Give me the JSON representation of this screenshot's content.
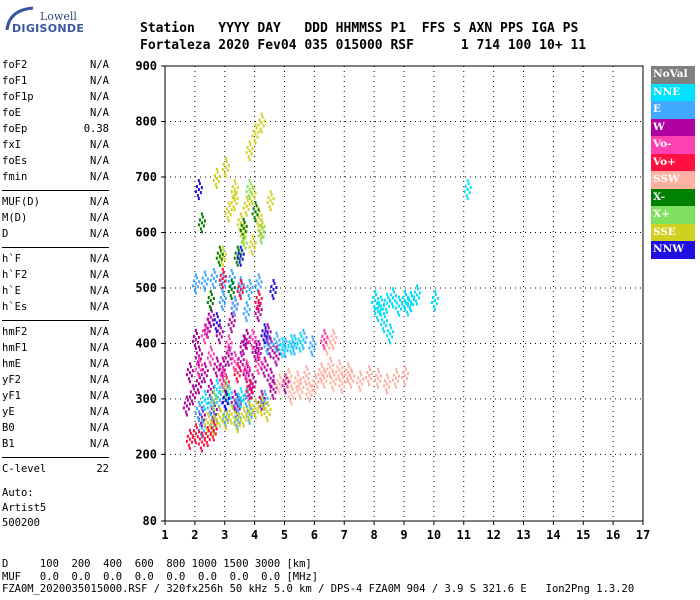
{
  "logo": {
    "top": "Lowell",
    "bottom": "DIGISONDE"
  },
  "header": {
    "line1": "Station   YYYY DAY   DDD HHMMSS P1  FFS S AXN PPS IGA PS",
    "line2": "Fortaleza 2020 Fev04 035 015000 RSF      1 714 100 10+ 11"
  },
  "params_group1": [
    {
      "name": "foF2",
      "value": "N/A"
    },
    {
      "name": "foF1",
      "value": "N/A"
    },
    {
      "name": "foF1p",
      "value": "N/A"
    },
    {
      "name": "foE",
      "value": "N/A"
    },
    {
      "name": "foEp",
      "value": "0.38"
    },
    {
      "name": "fxI",
      "value": "N/A"
    },
    {
      "name": "foEs",
      "value": "N/A"
    },
    {
      "name": "fmin",
      "value": "N/A"
    }
  ],
  "params_group2": [
    {
      "name": "MUF(D)",
      "value": "N/A"
    },
    {
      "name": "M(D)",
      "value": "N/A"
    },
    {
      "name": "D",
      "value": "N/A"
    }
  ],
  "params_group3": [
    {
      "name": "h`F",
      "value": "N/A"
    },
    {
      "name": "h`F2",
      "value": "N/A"
    },
    {
      "name": "h`E",
      "value": "N/A"
    },
    {
      "name": "h`Es",
      "value": "N/A"
    }
  ],
  "params_group4": [
    {
      "name": "hmF2",
      "value": "N/A"
    },
    {
      "name": "hmF1",
      "value": "N/A"
    },
    {
      "name": "hmE",
      "value": "N/A"
    },
    {
      "name": "yF2",
      "value": "N/A"
    },
    {
      "name": "yF1",
      "value": "N/A"
    },
    {
      "name": "yE",
      "value": "N/A"
    },
    {
      "name": "B0",
      "value": "N/A"
    },
    {
      "name": "B1",
      "value": "N/A"
    }
  ],
  "params_group5": [
    {
      "name": "C-level",
      "value": "22"
    }
  ],
  "auto": {
    "line1": "Auto:",
    "line2": "Artist5",
    "line3": "500200"
  },
  "legend": [
    {
      "label": "NoVal",
      "color": "#808080"
    },
    {
      "label": "NNE",
      "color": "#00e0ff"
    },
    {
      "label": "E",
      "color": "#40a8ff"
    },
    {
      "label": "W",
      "color": "#b000a0"
    },
    {
      "label": "Vo-",
      "color": "#ff40b0"
    },
    {
      "label": "Vo+",
      "color": "#ff1040"
    },
    {
      "label": "SSW",
      "color": "#ffb0a0"
    },
    {
      "label": "X-",
      "color": "#008000"
    },
    {
      "label": "X+",
      "color": "#80e060"
    },
    {
      "label": "SSE",
      "color": "#d0d020"
    },
    {
      "label": "NNW",
      "color": "#2010e0"
    }
  ],
  "bottom": {
    "line1": "D     100  200  400  600  800 1000 1500 3000 [km]",
    "line2": "MUF   0.0  0.0  0.0  0.0  0.0  0.0  0.0  0.0 [MHz]",
    "line3": "FZA0M_2020035015000.RSF / 320fx256h 50 kHz 5.0 km / DPS-4 FZA0M 904 / 3.9 S 321.6 E   Ion2Png 1.3.20"
  },
  "chart_data": {
    "type": "scatter",
    "x_ticks": [
      "1",
      "2",
      "3",
      "4",
      "5",
      "6",
      "7",
      "8",
      "9",
      "10",
      "11",
      "12",
      "13",
      "14",
      "15",
      "16",
      "17"
    ],
    "y_ticks": [
      "80",
      "200",
      "300",
      "400",
      "500",
      "600",
      "700",
      "800",
      "900"
    ],
    "xlim": [
      1,
      17
    ],
    "ylim": [
      80,
      900
    ],
    "series": [
      {
        "color": "#b000a0",
        "x": [
          1.7,
          1.9,
          2.1,
          2.3,
          2.5,
          2.7,
          2.9,
          3.1,
          3.3,
          3.5,
          3.7,
          3.9,
          4.1,
          4.3,
          4.5,
          4.7,
          2.0,
          2.4,
          2.8,
          3.2,
          3.6,
          4.0,
          4.4,
          2.2,
          2.6,
          3.0,
          3.4,
          3.8,
          4.2,
          4.6,
          5.0,
          1.8,
          2.5,
          3.3,
          4.1,
          2.1,
          2.9,
          3.7,
          4.5
        ],
        "y": [
          290,
          310,
          330,
          350,
          320,
          360,
          340,
          380,
          300,
          370,
          350,
          330,
          390,
          360,
          340,
          380,
          410,
          430,
          420,
          440,
          400,
          390,
          420,
          270,
          280,
          300,
          290,
          310,
          300,
          320,
          330,
          350,
          450,
          470,
          460,
          380,
          360,
          410,
          395
        ]
      },
      {
        "color": "#40a8ff",
        "x": [
          2.0,
          2.3,
          2.6,
          2.9,
          3.2,
          3.5,
          3.8,
          4.1,
          4.4,
          4.7,
          5.0,
          5.3,
          5.6,
          5.9,
          2.1,
          2.5,
          2.8,
          3.1,
          3.4,
          3.7,
          4.0,
          4.3,
          2.2,
          2.6,
          3.0,
          3.4,
          3.8,
          2.9,
          3.3,
          3.7
        ],
        "y": [
          510,
          515,
          520,
          512,
          518,
          505,
          500,
          510,
          400,
          405,
          395,
          400,
          410,
          398,
          280,
          290,
          300,
          310,
          295,
          305,
          285,
          300,
          250,
          260,
          270,
          265,
          275,
          480,
          470,
          460
        ]
      },
      {
        "color": "#00e0ff",
        "x": [
          8.0,
          8.2,
          8.4,
          8.6,
          8.8,
          9.0,
          9.2,
          9.4,
          8.3,
          8.5,
          8.1,
          9.1,
          2.3,
          2.7,
          3.1,
          3.5,
          4.9,
          5.2,
          5.5,
          10.0,
          11.1
        ],
        "y": [
          480,
          470,
          475,
          485,
          470,
          480,
          478,
          490,
          440,
          420,
          460,
          470,
          300,
          320,
          310,
          305,
          395,
          400,
          405,
          480,
          680
        ]
      },
      {
        "color": "#ffb0a0",
        "x": [
          4.8,
          5.1,
          5.4,
          5.7,
          6.0,
          6.3,
          6.6,
          6.9,
          7.2,
          7.5,
          7.8,
          8.1,
          8.4,
          8.7,
          9.0,
          6.2,
          6.5,
          6.8,
          7.1,
          5.2,
          5.5,
          5.8,
          6.4,
          6.6
        ],
        "y": [
          330,
          340,
          335,
          345,
          330,
          340,
          335,
          330,
          340,
          335,
          345,
          340,
          330,
          340,
          345,
          350,
          360,
          355,
          350,
          310,
          320,
          315,
          400,
          410
        ]
      },
      {
        "color": "#d0d020",
        "x": [
          2.4,
          2.6,
          2.8,
          3.0,
          3.2,
          3.4,
          3.6,
          3.8,
          4.0,
          4.2,
          4.4,
          3.1,
          3.3,
          3.5,
          3.7,
          3.9,
          4.1,
          2.7,
          3.0,
          3.3,
          3.6,
          3.9,
          4.2,
          4.5,
          2.9,
          3.8,
          4.0,
          4.2
        ],
        "y": [
          260,
          255,
          270,
          265,
          275,
          260,
          270,
          280,
          285,
          290,
          280,
          640,
          660,
          620,
          650,
          670,
          630,
          700,
          720,
          680,
          600,
          580,
          610,
          660,
          560,
          750,
          780,
          800
        ]
      },
      {
        "color": "#ff1040",
        "x": [
          1.8,
          2.0,
          2.2,
          2.4,
          2.6,
          3.0,
          3.4,
          3.8,
          2.9,
          3.5,
          4.1
        ],
        "y": [
          230,
          240,
          225,
          235,
          245,
          330,
          350,
          320,
          520,
          500,
          480
        ]
      },
      {
        "color": "#ff40b0",
        "x": [
          2.1,
          2.5,
          2.9,
          3.3,
          3.7,
          4.1,
          2.3,
          3.1,
          3.9,
          6.3
        ],
        "y": [
          360,
          380,
          340,
          370,
          355,
          365,
          420,
          400,
          410,
          410
        ]
      },
      {
        "color": "#008000",
        "x": [
          2.2,
          2.5,
          3.4,
          3.6,
          4.0,
          2.8,
          3.2
        ],
        "y": [
          620,
          480,
          560,
          610,
          640,
          560,
          500
        ]
      },
      {
        "color": "#80e060",
        "x": [
          2.6,
          3.0,
          3.6,
          4.2,
          3.8
        ],
        "y": [
          300,
          320,
          580,
          600,
          680
        ]
      },
      {
        "color": "#2010e0",
        "x": [
          2.1,
          2.7,
          3.5,
          4.3,
          3.0,
          4.6
        ],
        "y": [
          680,
          440,
          560,
          420,
          300,
          500
        ]
      }
    ]
  }
}
